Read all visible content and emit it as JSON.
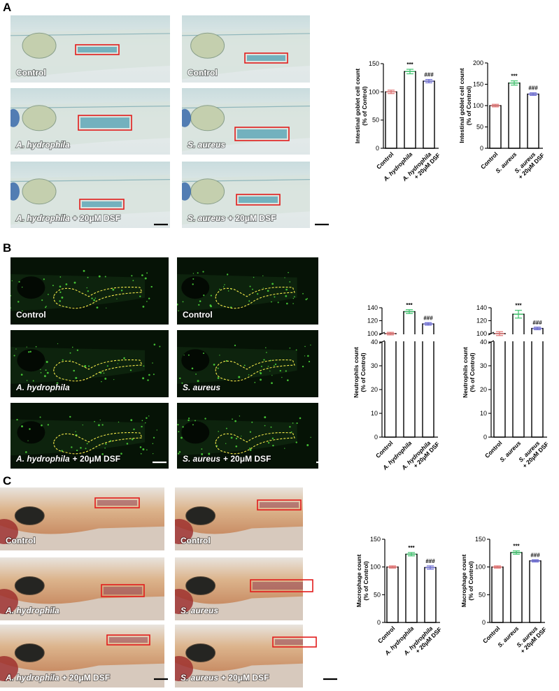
{
  "panels": [
    {
      "letter": "A",
      "columns": [
        [
          {
            "label": "Control"
          },
          {
            "species": "A. hydrophila"
          },
          {
            "species": "A. hydrophila",
            "treatment": "+ 20μM DSF"
          }
        ],
        [
          {
            "label": "Control"
          },
          {
            "species": "S. aureus"
          },
          {
            "species": "S. aureus",
            "treatment": "+ 20μM DSF"
          }
        ]
      ]
    },
    {
      "letter": "B",
      "columns": [
        [
          {
            "label": "Control"
          },
          {
            "species": "A. hydrophila"
          },
          {
            "species": "A. hydrophila",
            "treatment": "+ 20μM DSF"
          }
        ],
        [
          {
            "label": "Control"
          },
          {
            "species": "S. aureus"
          },
          {
            "species": "S. aureus",
            "treatment": "+ 20μM DSF"
          }
        ]
      ]
    },
    {
      "letter": "C",
      "columns": [
        [
          {
            "label": "Control"
          },
          {
            "species": "A. hydrophila"
          },
          {
            "species": "A. hydrophila",
            "treatment": "+ 20μM DSF"
          }
        ],
        [
          {
            "label": "Control"
          },
          {
            "species": "S. aureus"
          },
          {
            "species": "S. aureus",
            "treatment": "+ 20μM DSF"
          }
        ]
      ]
    }
  ],
  "chart_data": [
    {
      "type": "bar",
      "y_label": [
        "Intestinal goblet cell count",
        "(% of Control)"
      ],
      "categories": [
        [
          "Control"
        ],
        [
          "A. hydrophila"
        ],
        [
          "A. hydrophila",
          "+ 20μM DSF"
        ]
      ],
      "values": [
        100,
        136,
        119
      ],
      "errors": [
        3,
        4,
        3
      ],
      "significance": [
        null,
        "***",
        "###"
      ],
      "colors": [
        "#e07070",
        "#3ec46d",
        "#6b6bd6"
      ],
      "ylim": [
        0,
        150
      ],
      "yticks": [
        0,
        50,
        100,
        150
      ]
    },
    {
      "type": "bar",
      "y_label": [
        "Intestinal goblet cell count",
        "(% of Control)"
      ],
      "categories": [
        [
          "Control"
        ],
        [
          "S. aureus"
        ],
        [
          "S. aureus",
          "+ 20μM DSF"
        ]
      ],
      "values": [
        100,
        153,
        127
      ],
      "errors": [
        3,
        5,
        3
      ],
      "significance": [
        null,
        "***",
        "###"
      ],
      "colors": [
        "#e07070",
        "#3ec46d",
        "#6b6bd6"
      ],
      "ylim": [
        0,
        200
      ],
      "yticks": [
        0,
        50,
        100,
        150,
        200
      ]
    },
    {
      "type": "bar",
      "y_label": [
        "Neutrophils count",
        "(% of Control)"
      ],
      "categories": [
        [
          "Control"
        ],
        [
          "A. hydrophila"
        ],
        [
          "A. hydrophila",
          "+ 20μM DSF"
        ]
      ],
      "values": [
        100,
        134,
        115
      ],
      "errors": [
        2,
        3,
        2
      ],
      "significance": [
        null,
        "***",
        "###"
      ],
      "colors": [
        "#e07070",
        "#3ec46d",
        "#6b6bd6"
      ],
      "ylim": [
        0,
        140
      ],
      "ybreak": [
        40,
        100
      ],
      "yticks": [
        0,
        10,
        20,
        30,
        40,
        100,
        120,
        140
      ]
    },
    {
      "type": "bar",
      "y_label": [
        "Neutrophils count",
        "(% of Control)"
      ],
      "categories": [
        [
          "Control"
        ],
        [
          "S. aureus"
        ],
        [
          "S. aureus",
          "+ 20μM DSF"
        ]
      ],
      "values": [
        100,
        130,
        108
      ],
      "errors": [
        3,
        6,
        2
      ],
      "significance": [
        null,
        "***",
        "###"
      ],
      "colors": [
        "#e07070",
        "#3ec46d",
        "#6b6bd6"
      ],
      "ylim": [
        0,
        140
      ],
      "ybreak": [
        40,
        100
      ],
      "yticks": [
        0,
        10,
        20,
        30,
        40,
        100,
        120,
        140
      ]
    },
    {
      "type": "bar",
      "y_label": [
        "Macrophage count",
        "(% of Control)"
      ],
      "categories": [
        [
          "Control"
        ],
        [
          "A. hydrophila"
        ],
        [
          "A. hydrophila",
          "+ 20μM DSF"
        ]
      ],
      "values": [
        100,
        123,
        99
      ],
      "errors": [
        2,
        3,
        3
      ],
      "significance": [
        null,
        "***",
        "###"
      ],
      "colors": [
        "#e07070",
        "#3ec46d",
        "#6b6bd6"
      ],
      "ylim": [
        0,
        150
      ],
      "yticks": [
        0,
        50,
        100,
        150
      ]
    },
    {
      "type": "bar",
      "y_label": [
        "Macrophage count",
        "(% of Control)"
      ],
      "categories": [
        [
          "Control"
        ],
        [
          "S. aureus"
        ],
        [
          "S. aureus",
          "+ 20μM DSF"
        ]
      ],
      "values": [
        100,
        126,
        111
      ],
      "errors": [
        2,
        3,
        2
      ],
      "significance": [
        null,
        "***",
        "###"
      ],
      "colors": [
        "#e07070",
        "#3ec46d",
        "#6b6bd6"
      ],
      "ylim": [
        0,
        150
      ],
      "yticks": [
        0,
        50,
        100,
        150
      ]
    }
  ]
}
